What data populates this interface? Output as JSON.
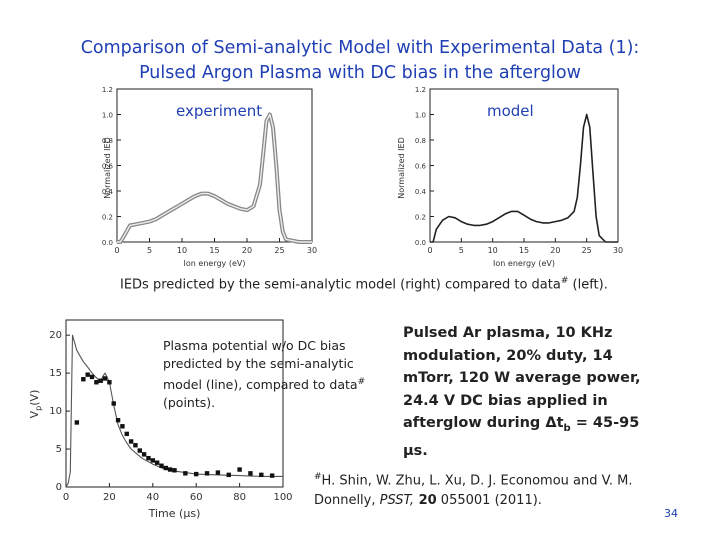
{
  "slide": {
    "title_line1": "Comparison of Semi-analytic Model with Experimental Data (1):",
    "title_line2": "Pulsed Argon Plasma with DC bias in the afterglow",
    "page_number": "34"
  },
  "captions": {
    "ied_caption": "IEDs predicted by the semi-analytic model (right) compared to data",
    "ied_caption_mark": "#",
    "ied_caption_end": " (left).",
    "potential_caption": "Plasma potential w/o DC bias predicted by the semi-analytic model (line), compared to data",
    "potential_caption_mark": "#",
    "potential_caption_end": " (points)."
  },
  "info": {
    "text": "Pulsed Ar plasma, 10 KHz modulation, 20% duty, 14 mTorr, 120 W average power, 24.4 V DC bias applied in afterglow during ",
    "delta": "Δt",
    "sub": "b",
    "end": " = 45-95 µs."
  },
  "reference": {
    "mark": "#",
    "authors": "H. Shin, W. Zhu, L. Xu, D. J. Economou and V. M. Donnelly, ",
    "journal": "PSST,",
    "volume": " 20",
    "rest": " 055001 (2011)."
  },
  "chart_data": [
    {
      "type": "line",
      "label": "experiment",
      "xlabel": "Ion energy (eV)",
      "ylabel": "Normalized IED",
      "xlim": [
        0,
        30
      ],
      "ylim": [
        0,
        1.2
      ],
      "xticks": [
        "0",
        "5",
        "10",
        "15",
        "20",
        "25",
        "30"
      ],
      "yticks": [
        "0.0",
        "0.2",
        "0.4",
        "0.6",
        "0.8",
        "1.0",
        "1.2"
      ],
      "series": [
        {
          "x": [
            0,
            0.5,
            1,
            2,
            3,
            4,
            5,
            6,
            7,
            8,
            9,
            10,
            11,
            12,
            13,
            14,
            15,
            16,
            17,
            18,
            19,
            20,
            21,
            22,
            22.5,
            23,
            23.5,
            24,
            24.5,
            25,
            25.5,
            26,
            27,
            28,
            29,
            30
          ],
          "y": [
            0.0,
            0.0,
            0.04,
            0.13,
            0.14,
            0.15,
            0.16,
            0.18,
            0.21,
            0.24,
            0.27,
            0.3,
            0.33,
            0.36,
            0.38,
            0.38,
            0.36,
            0.33,
            0.3,
            0.28,
            0.26,
            0.25,
            0.28,
            0.45,
            0.7,
            0.95,
            1.0,
            0.9,
            0.6,
            0.25,
            0.08,
            0.02,
            0.01,
            0.0,
            0.0,
            0.0
          ]
        }
      ]
    },
    {
      "type": "line",
      "label": "model",
      "xlabel": "Ion energy (eV)",
      "ylabel": "Normalized IED",
      "xlim": [
        0,
        30
      ],
      "ylim": [
        0,
        1.2
      ],
      "xticks": [
        "0",
        "5",
        "10",
        "15",
        "20",
        "25",
        "30"
      ],
      "yticks": [
        "0.0",
        "0.2",
        "0.4",
        "0.6",
        "0.8",
        "1.0",
        "1.2"
      ],
      "series": [
        {
          "x": [
            0,
            0.5,
            1,
            2,
            3,
            4,
            5,
            6,
            7,
            8,
            9,
            10,
            11,
            12,
            13,
            14,
            15,
            16,
            17,
            18,
            19,
            20,
            21,
            22,
            23,
            23.5,
            24,
            24.5,
            25,
            25.5,
            26,
            26.5,
            27,
            28,
            29,
            30
          ],
          "y": [
            0.0,
            0.0,
            0.1,
            0.17,
            0.2,
            0.19,
            0.16,
            0.14,
            0.13,
            0.13,
            0.14,
            0.16,
            0.19,
            0.22,
            0.24,
            0.24,
            0.21,
            0.18,
            0.16,
            0.15,
            0.15,
            0.16,
            0.17,
            0.19,
            0.24,
            0.35,
            0.6,
            0.9,
            1.0,
            0.9,
            0.55,
            0.2,
            0.05,
            0.0,
            0.0,
            0.0
          ]
        }
      ]
    },
    {
      "type": "scatter",
      "xlabel": "Time (µs)",
      "ylabel": "V_p (V)",
      "xlim": [
        0,
        100
      ],
      "ylim": [
        0,
        22
      ],
      "xticks": [
        "0",
        "20",
        "40",
        "60",
        "80",
        "100"
      ],
      "yticks": [
        "0",
        "5",
        "10",
        "15",
        "20"
      ],
      "series": [
        {
          "type": "line",
          "x": [
            0,
            1,
            2,
            3,
            4,
            5,
            6,
            8,
            10,
            12,
            14,
            16,
            17,
            18,
            20,
            22,
            24,
            26,
            28,
            30,
            35,
            40,
            45,
            50,
            55,
            60,
            70,
            80,
            90,
            100
          ],
          "y": [
            0,
            0.5,
            2,
            20,
            19,
            18,
            17.5,
            16.5,
            15.8,
            15,
            14.4,
            13.9,
            14.6,
            15.0,
            13.8,
            10.8,
            8.2,
            6.8,
            5.8,
            5.0,
            3.8,
            3.0,
            2.4,
            2.1,
            1.9,
            1.7,
            1.6,
            1.5,
            1.4,
            1.4
          ]
        },
        {
          "type": "scatter",
          "x": [
            5,
            8,
            10,
            12,
            14,
            16,
            18,
            20,
            22,
            24,
            26,
            28,
            30,
            32,
            34,
            36,
            38,
            40,
            42,
            44,
            46,
            48,
            50,
            55,
            60,
            65,
            70,
            75,
            80,
            85,
            90,
            95
          ],
          "y": [
            8.5,
            14.2,
            14.8,
            14.5,
            13.8,
            14.0,
            14.3,
            13.8,
            11.0,
            8.8,
            8.0,
            7.0,
            6.0,
            5.5,
            4.8,
            4.3,
            3.8,
            3.5,
            3.2,
            2.8,
            2.5,
            2.3,
            2.2,
            1.8,
            1.7,
            1.8,
            1.9,
            1.6,
            2.3,
            1.8,
            1.6,
            1.5
          ]
        }
      ]
    }
  ]
}
